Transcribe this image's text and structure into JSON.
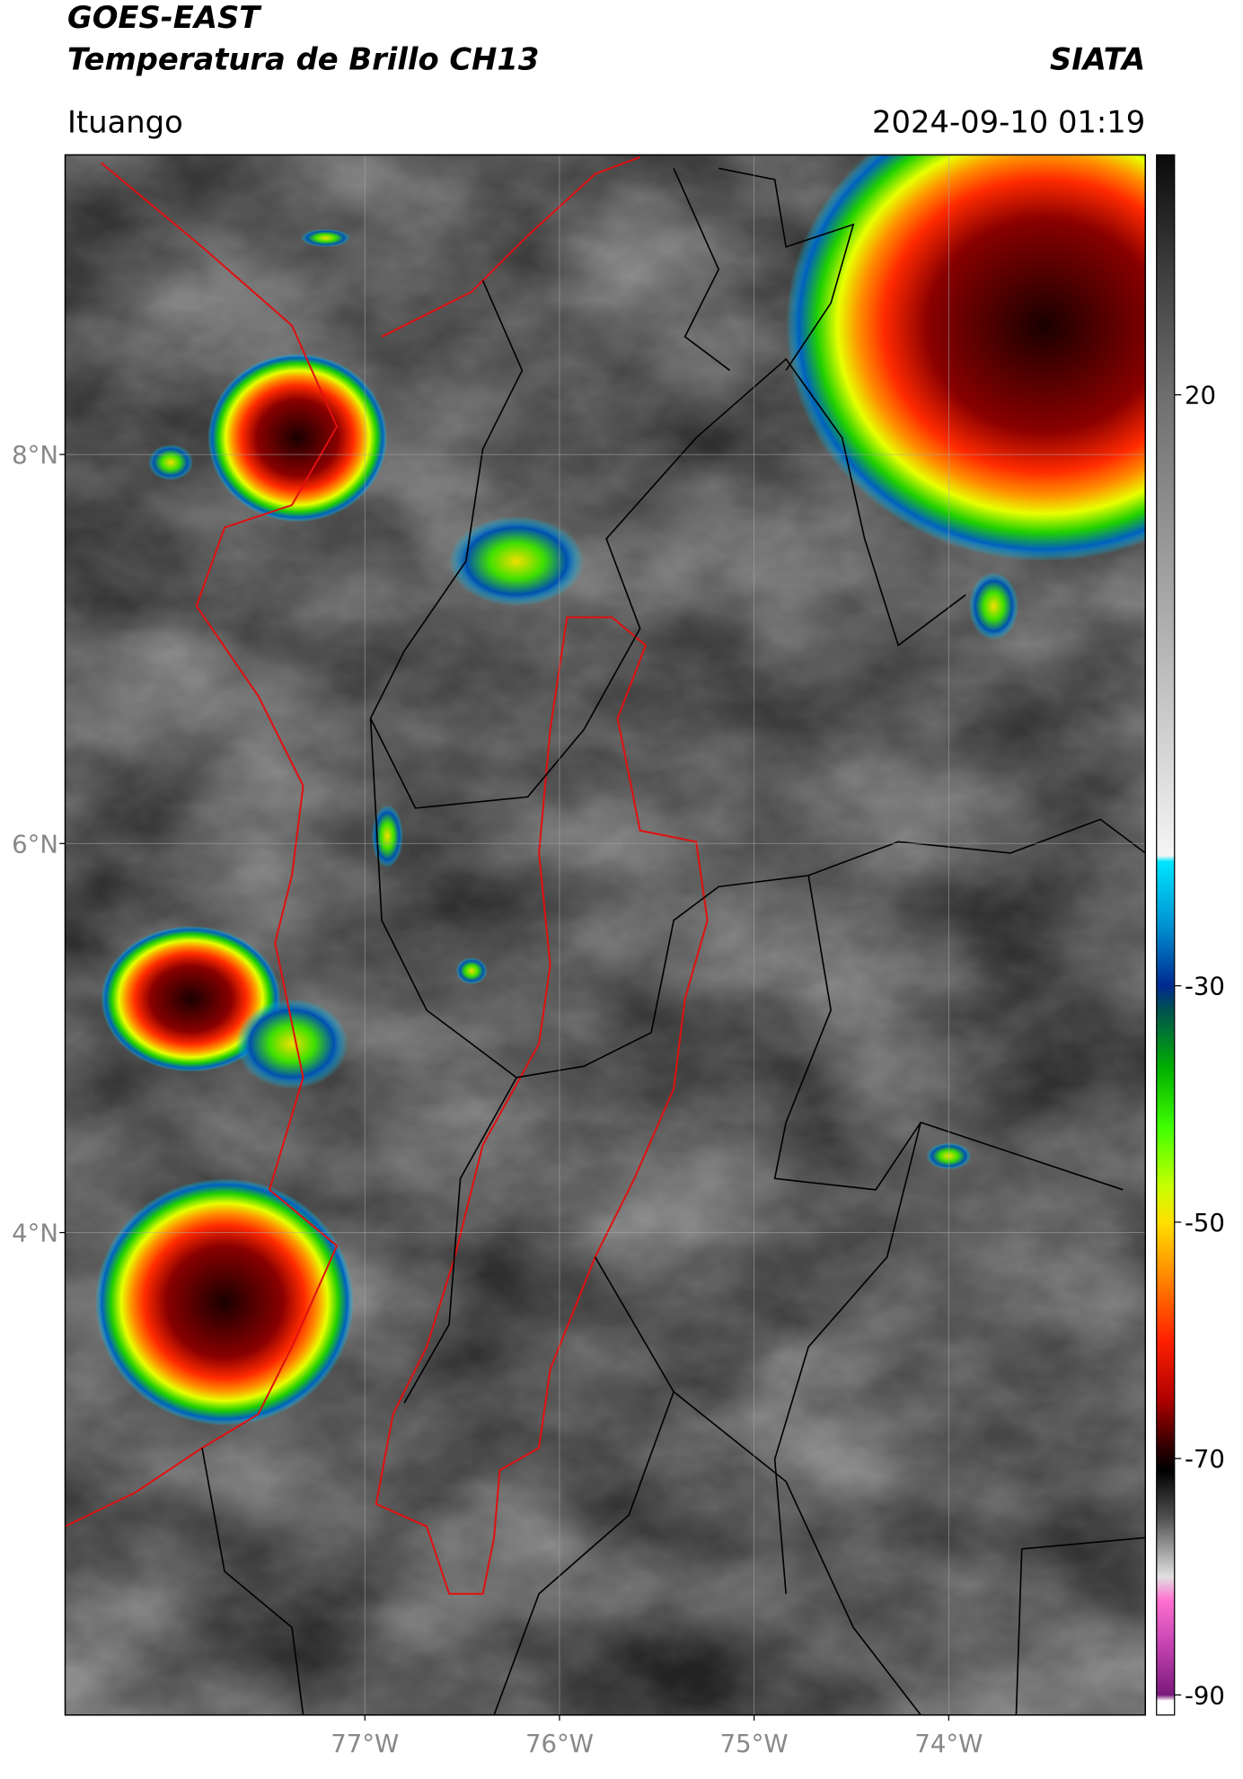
{
  "header": {
    "title": "GOES-EAST",
    "subtitle": "Temperatura de Brillo CH13",
    "source": "SIATA",
    "location": "Ituango",
    "datetime": "2024-09-10 01:19"
  },
  "map": {
    "xlim": [
      -78.54,
      -72.99
    ],
    "ylim": [
      1.52,
      9.54
    ],
    "xticks": [
      {
        "value": -77,
        "label": "77°W"
      },
      {
        "value": -76,
        "label": "76°W"
      },
      {
        "value": -75,
        "label": "75°W"
      },
      {
        "value": -74,
        "label": "74°W"
      }
    ],
    "yticks": [
      {
        "value": 8,
        "label": "8°N"
      },
      {
        "value": 6,
        "label": "6°N"
      },
      {
        "value": 4,
        "label": "4°N"
      }
    ],
    "grid": true
  },
  "colorbar": {
    "lim": [
      -91.7,
      40.3
    ],
    "ticks": [
      20,
      -30,
      -50,
      -70,
      -90
    ],
    "stops": [
      {
        "value": 40.3,
        "color": "#0a0a0a"
      },
      {
        "value": 30,
        "color": "#404040"
      },
      {
        "value": 20,
        "color": "#6e6e6e"
      },
      {
        "value": 0,
        "color": "#b0b0b0"
      },
      {
        "value": -19,
        "color": "#f5f5f5"
      },
      {
        "value": -19.5,
        "color": "#00e5ff"
      },
      {
        "value": -25,
        "color": "#0090d0"
      },
      {
        "value": -30,
        "color": "#002a90"
      },
      {
        "value": -32,
        "color": "#005050"
      },
      {
        "value": -37,
        "color": "#00b000"
      },
      {
        "value": -42,
        "color": "#40ff00"
      },
      {
        "value": -47,
        "color": "#c8ff00"
      },
      {
        "value": -50,
        "color": "#ffe000"
      },
      {
        "value": -55,
        "color": "#ff8000"
      },
      {
        "value": -60,
        "color": "#ff2000"
      },
      {
        "value": -65,
        "color": "#b00000"
      },
      {
        "value": -69,
        "color": "#300000"
      },
      {
        "value": -71,
        "color": "#000000"
      },
      {
        "value": -75,
        "color": "#505050"
      },
      {
        "value": -80,
        "color": "#e0e0e0"
      },
      {
        "value": -82,
        "color": "#ff70d0"
      },
      {
        "value": -86,
        "color": "#c040b0"
      },
      {
        "value": -90,
        "color": "#7a1a7a"
      },
      {
        "value": -90.5,
        "color": "#ffffff"
      },
      {
        "value": -91.7,
        "color": "#ffffff"
      }
    ]
  }
}
